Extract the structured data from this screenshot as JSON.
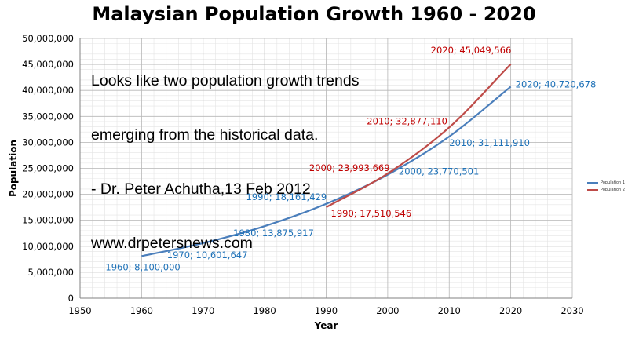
{
  "chart_data": {
    "type": "line",
    "title": "Malaysian Population Growth 1960 - 2020",
    "xlabel": "Year",
    "ylabel": "Population",
    "xlim": [
      1950,
      2030
    ],
    "ylim": [
      0,
      50000000
    ],
    "x_ticks": [
      1950,
      1960,
      1970,
      1980,
      1990,
      2000,
      2010,
      2020,
      2030
    ],
    "y_ticks": [
      0,
      5000000,
      10000000,
      15000000,
      20000000,
      25000000,
      30000000,
      35000000,
      40000000,
      45000000,
      50000000
    ],
    "y_tick_labels": [
      "0",
      "5,000,000",
      "10,000,000",
      "15,000,000",
      "20,000,000",
      "25,000,000",
      "30,000,000",
      "35,000,000",
      "40,000,000",
      "45,000,000",
      "50,000,000"
    ],
    "grid": true,
    "legend_position": "right",
    "series": [
      {
        "name": "Population 1",
        "color": "#4a7ebb",
        "label_color": "#1f72b8",
        "x": [
          1960,
          1970,
          1980,
          1990,
          2000,
          2010,
          2020
        ],
        "values": [
          8100000,
          10601647,
          13875917,
          18161429,
          23770501,
          31111910,
          40720678
        ],
        "point_labels": [
          "1960; 8,100,000",
          "1970; 10,601,647",
          "1980; 13,875,917",
          "1990; 18,161,429",
          "2000, 23,770,501",
          "2010; 31,111,910",
          "2020; 40,720,678"
        ]
      },
      {
        "name": "Population 2",
        "color": "#be4b48",
        "label_color": "#c00000",
        "x": [
          1990,
          2000,
          2010,
          2020
        ],
        "values": [
          17510546,
          23993669,
          32877110,
          45049566
        ],
        "point_labels": [
          "1990; 17,510,546",
          "2000; 23,993,669",
          "2010; 32,877,110",
          "2020; 45,049,566"
        ]
      }
    ]
  },
  "annotation": {
    "lines": [
      "Looks like two population growth trends",
      "emerging from the historical data.",
      "- Dr. Peter Achutha,13 Feb 2012",
      "www.drpetersnews.com"
    ]
  }
}
